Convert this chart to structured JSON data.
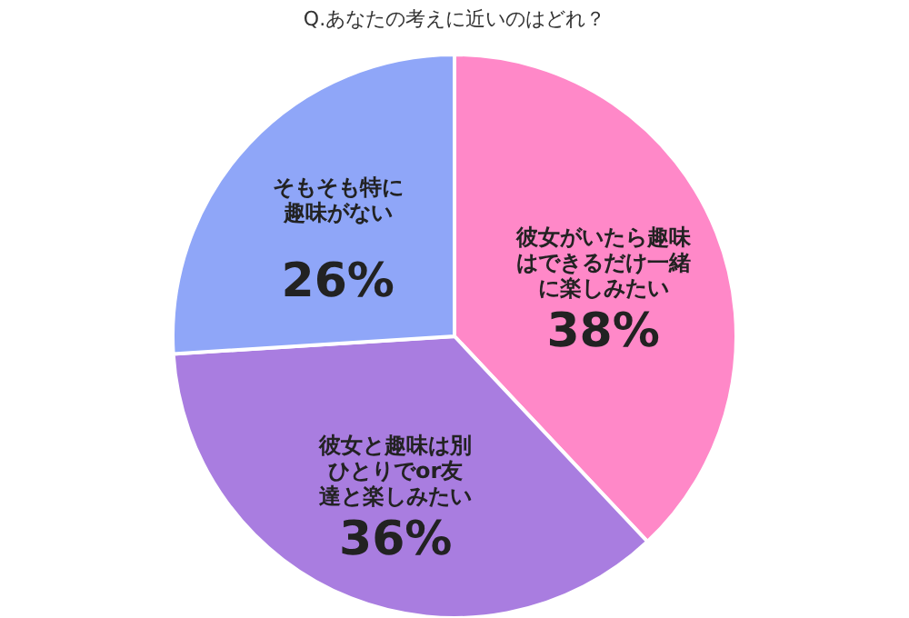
{
  "chart_data": {
    "type": "pie",
    "title": "Q.あなたの考えに近いのはどれ？",
    "categories": [
      "彼女がいたら趣味はできるだけ一緒に楽しみたい",
      "彼女と趣味は別ひとりでor友達と楽しみたい",
      "そもそも特に趣味がない"
    ],
    "values": [
      38,
      36,
      26
    ],
    "colors": [
      "#ff88c8",
      "#a97de0",
      "#8fa6f8"
    ],
    "value_labels": [
      "38%",
      "36%",
      "26%"
    ]
  }
}
